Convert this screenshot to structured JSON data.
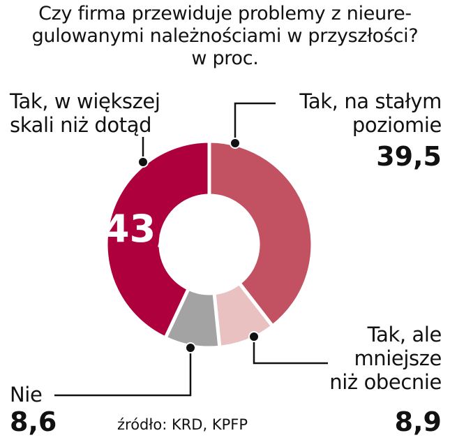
{
  "chart_data": {
    "type": "pie",
    "variant": "donut",
    "title_lines": [
      "Czy firma przewiduje problemy z nieure-",
      "gulowanymi należnościami w przyszłości?",
      "w proc."
    ],
    "unit": "%",
    "slices": [
      {
        "label_lines": [
          "Tak, na stałym",
          "poziomie"
        ],
        "value": 39.5,
        "value_text": "39,5",
        "color": "#c25161"
      },
      {
        "label_lines": [
          "Tak, ale",
          "mniejsze",
          "niż obecnie"
        ],
        "value": 8.9,
        "value_text": "8,9",
        "color": "#e8c1c0"
      },
      {
        "label_lines": [
          "Nie"
        ],
        "value": 8.6,
        "value_text": "8,6",
        "color": "#a3a3a3"
      },
      {
        "label_lines": [
          "Tak, w większej",
          "skali niż dotąd"
        ],
        "value": 43.0,
        "value_text": "43,0",
        "color": "#ad003c"
      }
    ],
    "source": "źródło: KRD, KPFP"
  }
}
